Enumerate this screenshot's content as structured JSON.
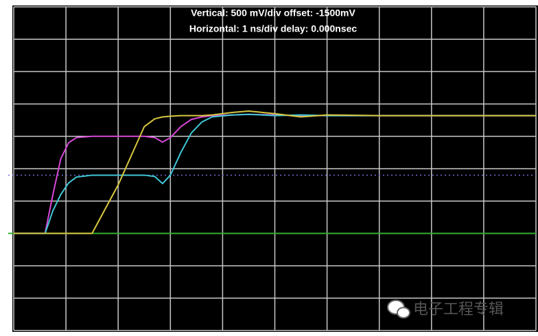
{
  "chart_data": {
    "type": "line",
    "title": [
      "Vertical: 500 mV/div  offset: -1500mV",
      "Horizontal: 1 ns/div  delay: 0.000nsec"
    ],
    "watermark": "电子工程专辑",
    "x": [
      0,
      0.6,
      0.75,
      0.9,
      1.05,
      1.2,
      1.5,
      2.0,
      2.5,
      2.7,
      2.85,
      3.0,
      3.2,
      3.4,
      3.6,
      3.8,
      4.2,
      4.5,
      5.0,
      5.5,
      6,
      7,
      8,
      9,
      10
    ],
    "series": [
      {
        "color": "#d848d8",
        "values": [
          500,
          500,
          1100,
          1650,
          1900,
          1980,
          2000,
          2000,
          2000,
          1980,
          1910,
          1980,
          2150,
          2260,
          2300,
          2320,
          2330,
          2340,
          2330,
          2320,
          2320,
          2320,
          2320,
          2320,
          2320
        ]
      },
      {
        "color": "#40c8d8",
        "values": [
          500,
          500,
          850,
          1100,
          1280,
          1370,
          1400,
          1400,
          1400,
          1380,
          1270,
          1400,
          1750,
          2050,
          2220,
          2300,
          2330,
          2340,
          2320,
          2330,
          2320,
          2320,
          2320,
          2320,
          2320
        ]
      },
      {
        "color": "#d8c840",
        "values": [
          500,
          500,
          500,
          500,
          500,
          500,
          500,
          1250,
          2150,
          2270,
          2300,
          2310,
          2320,
          2320,
          2320,
          2330,
          2370,
          2390,
          2350,
          2300,
          2330,
          2320,
          2320,
          2320,
          2320
        ]
      }
    ],
    "markers": [
      {
        "value": 1400,
        "color": "#7070d0",
        "dash": true
      },
      {
        "value": 500,
        "color": "#30b030",
        "dash": false
      }
    ],
    "xlim": [
      0,
      10
    ],
    "ylim": [
      -1000,
      4000
    ],
    "xticks": [
      0,
      1,
      2,
      3,
      4,
      5,
      6,
      7,
      8,
      9,
      10
    ],
    "yticks": [
      -1000,
      -500,
      0,
      500,
      1000,
      1500,
      2000,
      2500,
      3000,
      3500,
      4000
    ],
    "grid": true,
    "tick_labels": false
  }
}
